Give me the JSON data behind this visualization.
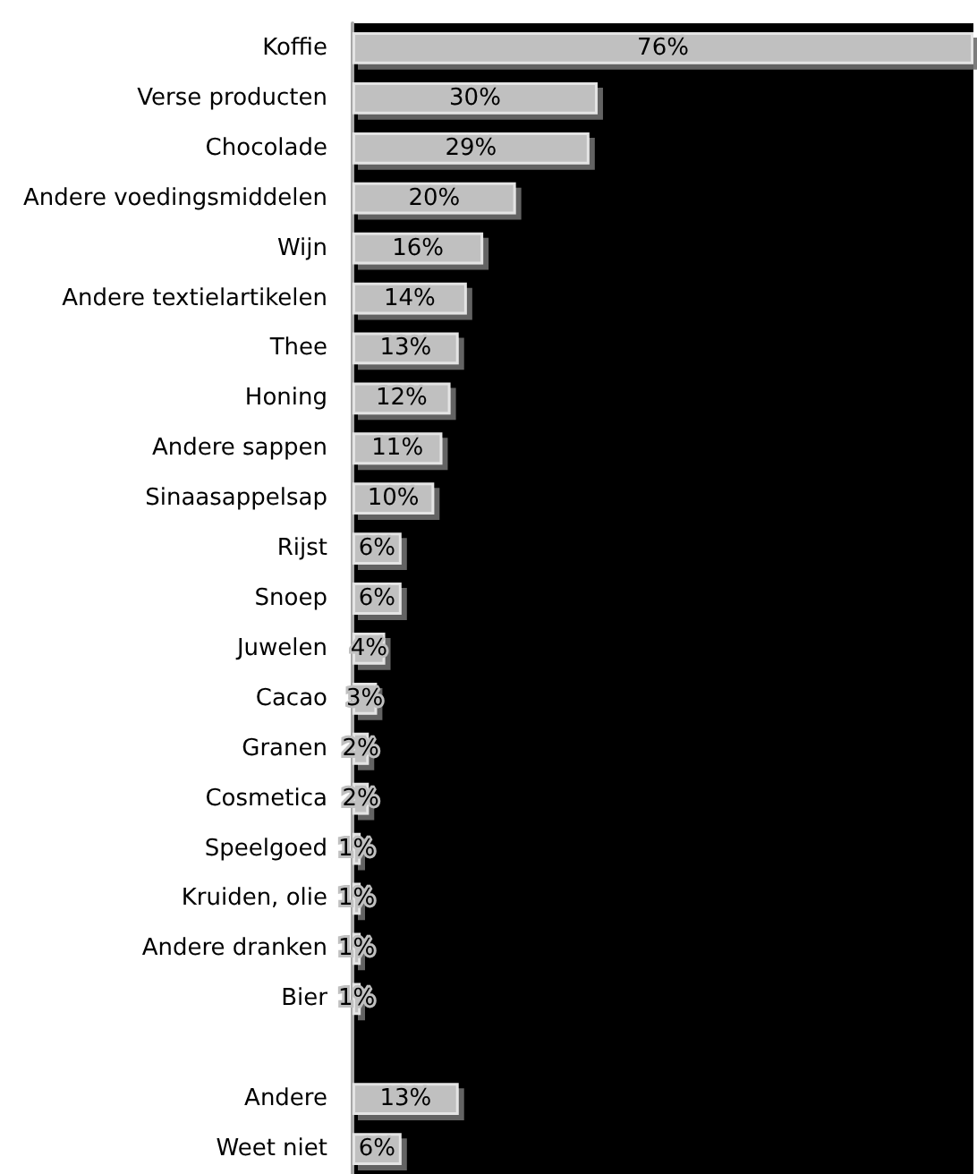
{
  "chart_data": {
    "type": "bar",
    "orientation": "horizontal",
    "categories": [
      "Koffie",
      "Verse producten",
      "Chocolade",
      "Andere voedingsmiddelen",
      "Wijn",
      "Andere textielartikelen",
      "Thee",
      "Honing",
      "Andere sappen",
      "Sinaasappelsap",
      "Rijst",
      "Snoep",
      "Juwelen",
      "Cacao",
      "Granen",
      "Cosmetica",
      "Speelgoed",
      "Kruiden, olie",
      "Andere dranken",
      "Bier",
      null,
      "Andere",
      "Weet niet"
    ],
    "values": [
      76,
      30,
      29,
      20,
      16,
      14,
      13,
      12,
      11,
      10,
      6,
      6,
      4,
      3,
      2,
      2,
      1,
      1,
      1,
      1,
      null,
      13,
      6
    ],
    "value_labels": [
      "76%",
      "30%",
      "29%",
      "20%",
      "16%",
      "14%",
      "13%",
      "12%",
      "11%",
      "10%",
      "6%",
      "6%",
      "4%",
      "3%",
      "2%",
      "2%",
      "1%",
      "1%",
      "1%",
      "1%",
      null,
      "13%",
      "6%"
    ],
    "color": "#c0c0c0"
  }
}
